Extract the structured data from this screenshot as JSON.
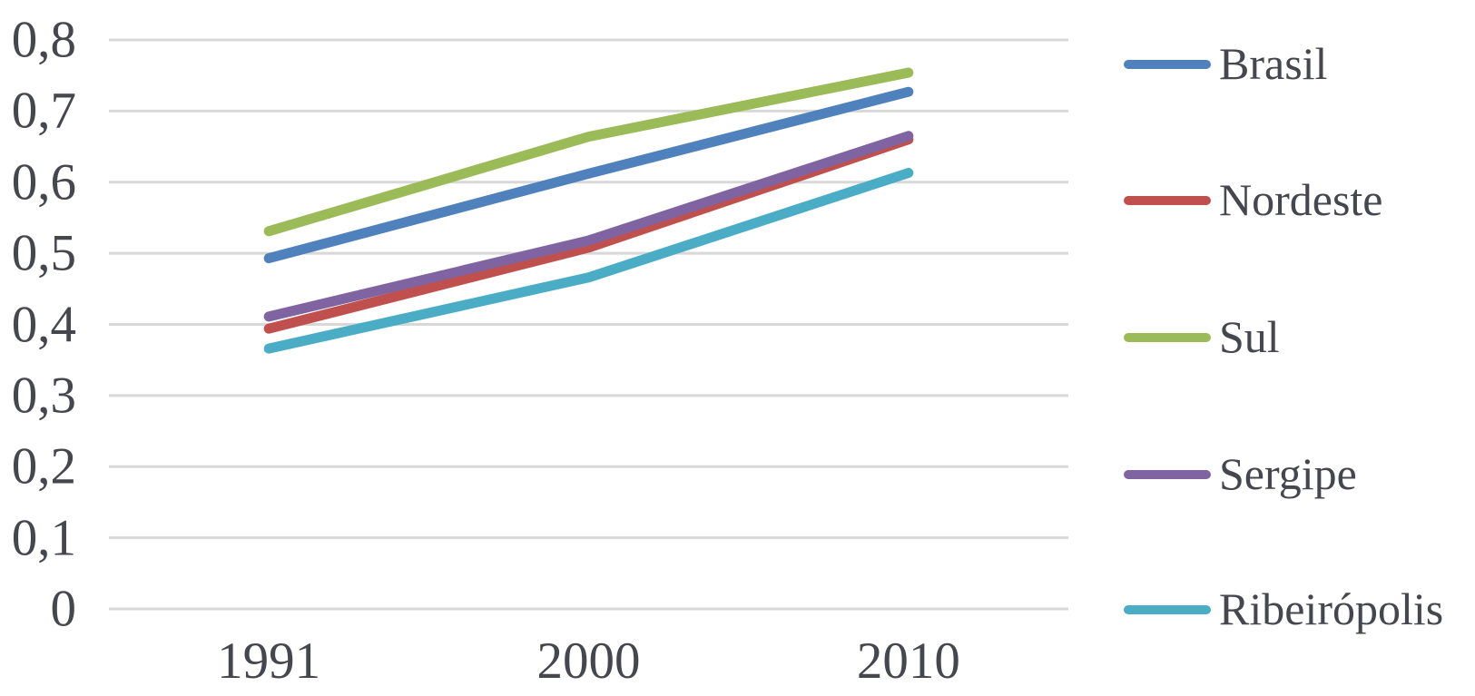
{
  "chart_data": {
    "type": "line",
    "title": "",
    "xlabel": "",
    "ylabel": "",
    "categories": [
      "1991",
      "2000",
      "2010"
    ],
    "series": [
      {
        "name": "Brasil",
        "color": "#4F81BD",
        "values": [
          0.493,
          0.612,
          0.727
        ]
      },
      {
        "name": "Nordeste",
        "color": "#C0504D",
        "values": [
          0.394,
          0.508,
          0.66
        ]
      },
      {
        "name": "Sul",
        "color": "#9BBB59",
        "values": [
          0.531,
          0.664,
          0.754
        ]
      },
      {
        "name": "Sergipe",
        "color": "#8064A2",
        "values": [
          0.411,
          0.518,
          0.665
        ]
      },
      {
        "name": "Ribeirópolis",
        "color": "#4BACC6",
        "values": [
          0.366,
          0.466,
          0.613
        ]
      }
    ],
    "ylim": [
      0,
      0.8
    ],
    "ytick_step": 0.1,
    "ytick_labels": [
      "0",
      "0,1",
      "0,2",
      "0,3",
      "0,4",
      "0,5",
      "0,6",
      "0,7",
      "0,8"
    ],
    "decimal_separator": ",",
    "grid": "horizontal",
    "legend_position": "right",
    "colors": {
      "gridline": "#D8D8D8",
      "text": "#45464E",
      "background": "#FFFFFF"
    }
  }
}
